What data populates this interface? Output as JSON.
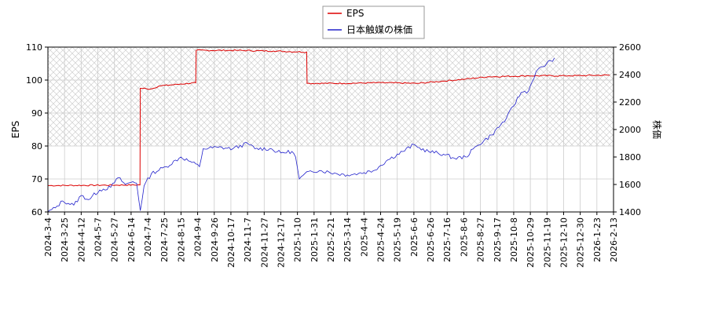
{
  "chart_data": {
    "type": "line",
    "title": "",
    "xlabel": "",
    "ylabel_left": "EPS",
    "ylabel_right": "株価",
    "ylim_left": [
      60,
      110
    ],
    "ylim_right": [
      1400,
      2600
    ],
    "yticks_left": [
      60,
      70,
      80,
      90,
      100,
      110
    ],
    "yticks_right": [
      1400,
      1600,
      1800,
      2000,
      2200,
      2400,
      2600
    ],
    "x_tick_labels": [
      "2024-3-4",
      "2024-3-25",
      "2024-4-12",
      "2024-5-7",
      "2024-5-27",
      "2024-6-14",
      "2024-7-4",
      "2024-7-25",
      "2024-8-15",
      "2024-9-4",
      "2024-9-26",
      "2024-10-17",
      "2024-11-7",
      "2024-11-27",
      "2024-12-17",
      "2025-1-10",
      "2025-1-31",
      "2025-2-21",
      "2025-3-14",
      "2025-4-4",
      "2025-4-24",
      "2025-5-19",
      "2025-6-6",
      "2025-6-26",
      "2025-7-16",
      "2025-8-6",
      "2025-8-27",
      "2025-9-17",
      "2025-10-8",
      "2025-10-29",
      "2025-11-19",
      "2025-12-10",
      "2025-12-30",
      "2026-1-23",
      "2026-2-13"
    ],
    "grid": true,
    "legend_position": "top-center",
    "hatched_region_left_axis": [
      80,
      110
    ],
    "series": [
      {
        "name": "EPS",
        "axis": "left",
        "color": "#dd0000",
        "points": [
          [
            0,
            68
          ],
          [
            24.9,
            68.2
          ],
          [
            25,
            97.5
          ],
          [
            28,
            97.3
          ],
          [
            30,
            98.2
          ],
          [
            36,
            98.8
          ],
          [
            40,
            99.2
          ],
          [
            40.1,
            109
          ],
          [
            51,
            109
          ],
          [
            61,
            108.8
          ],
          [
            70,
            108.5
          ],
          [
            70.1,
            99
          ],
          [
            80,
            99
          ],
          [
            90,
            99.2
          ],
          [
            100,
            99
          ],
          [
            107,
            99.7
          ],
          [
            113,
            100.3
          ],
          [
            119,
            101
          ],
          [
            130,
            101.3
          ],
          [
            141,
            101.3
          ],
          [
            152,
            101.5
          ]
        ]
      },
      {
        "name": "日本触媒の株価",
        "axis": "right",
        "color": "#2222cc",
        "points": [
          [
            0,
            1400
          ],
          [
            2,
            1430
          ],
          [
            4,
            1480
          ],
          [
            7,
            1450
          ],
          [
            9,
            1520
          ],
          [
            11,
            1490
          ],
          [
            14,
            1560
          ],
          [
            17,
            1580
          ],
          [
            19,
            1650
          ],
          [
            21,
            1600
          ],
          [
            23,
            1620
          ],
          [
            24,
            1610
          ],
          [
            25,
            1410
          ],
          [
            26,
            1590
          ],
          [
            28,
            1680
          ],
          [
            32,
            1730
          ],
          [
            36,
            1800
          ],
          [
            39,
            1760
          ],
          [
            41,
            1730
          ],
          [
            42,
            1860
          ],
          [
            46,
            1870
          ],
          [
            50,
            1860
          ],
          [
            54,
            1900
          ],
          [
            56,
            1860
          ],
          [
            60,
            1860
          ],
          [
            63,
            1830
          ],
          [
            66,
            1840
          ],
          [
            67,
            1800
          ],
          [
            68,
            1640
          ],
          [
            71,
            1700
          ],
          [
            74,
            1700
          ],
          [
            78,
            1680
          ],
          [
            81,
            1670
          ],
          [
            84,
            1680
          ],
          [
            88,
            1700
          ],
          [
            92,
            1780
          ],
          [
            96,
            1840
          ],
          [
            99,
            1890
          ],
          [
            100,
            1870
          ],
          [
            103,
            1840
          ],
          [
            107,
            1820
          ],
          [
            110,
            1790
          ],
          [
            113,
            1800
          ],
          [
            116,
            1880
          ],
          [
            120,
            1960
          ],
          [
            124,
            2080
          ],
          [
            128,
            2270
          ],
          [
            130,
            2280
          ],
          [
            132,
            2420
          ],
          [
            136,
            2500
          ],
          [
            137,
            2520
          ]
        ]
      }
    ]
  }
}
